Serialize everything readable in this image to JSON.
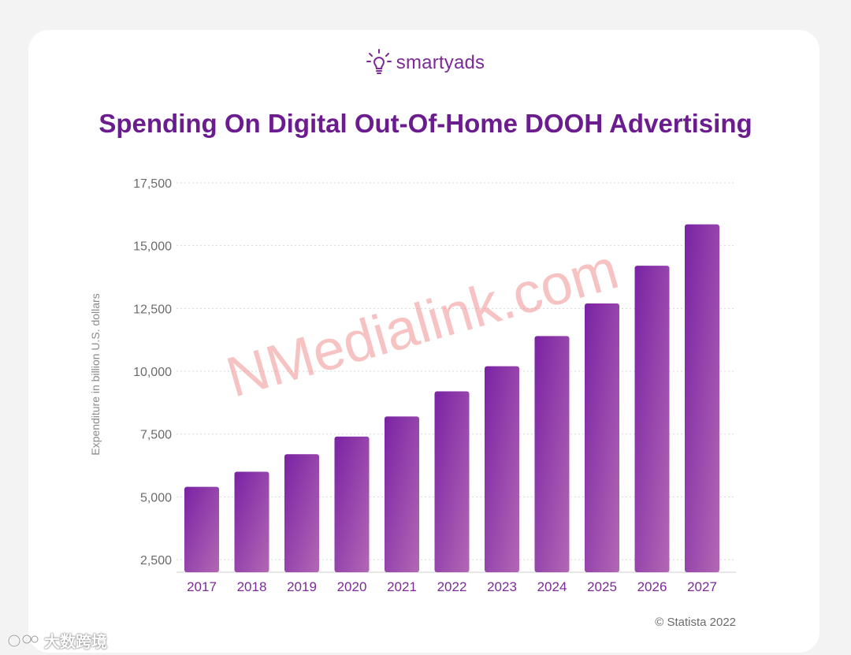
{
  "brand": {
    "name": "smartyads",
    "logo_icon": "lightbulb-icon"
  },
  "watermark": "NMedialink.com",
  "source": "© Statista 2022",
  "corner_mark": {
    "text": "大数跨境",
    "icon": "wechat-channel-icon"
  },
  "colors": {
    "title": "#6b1c8e",
    "bar_top": "#7a22a4",
    "bar_bottom": "#b268b4",
    "grid": "#d8d8d8",
    "tick_label": "#6b6b6b",
    "x_label": "#7b2a96"
  },
  "chart_data": {
    "type": "bar",
    "title": "Spending On Digital Out-Of-Home DOOH Advertising",
    "xlabel": "",
    "ylabel": "Expenditure in billion U.S. dollars",
    "categories": [
      "2017",
      "2018",
      "2019",
      "2020",
      "2021",
      "2022",
      "2023",
      "2024",
      "2025",
      "2026",
      "2027"
    ],
    "values": [
      5400,
      6000,
      6700,
      7400,
      8200,
      9200,
      10200,
      11400,
      12700,
      14200,
      15850
    ],
    "yticks": [
      2500,
      5000,
      7500,
      10000,
      12500,
      15000,
      17500
    ],
    "ytick_labels": [
      "2,500",
      "5,000",
      "7,500",
      "10,000",
      "12,500",
      "15,000",
      "17,500"
    ],
    "ylim": [
      2000,
      17500
    ],
    "grid": true
  }
}
